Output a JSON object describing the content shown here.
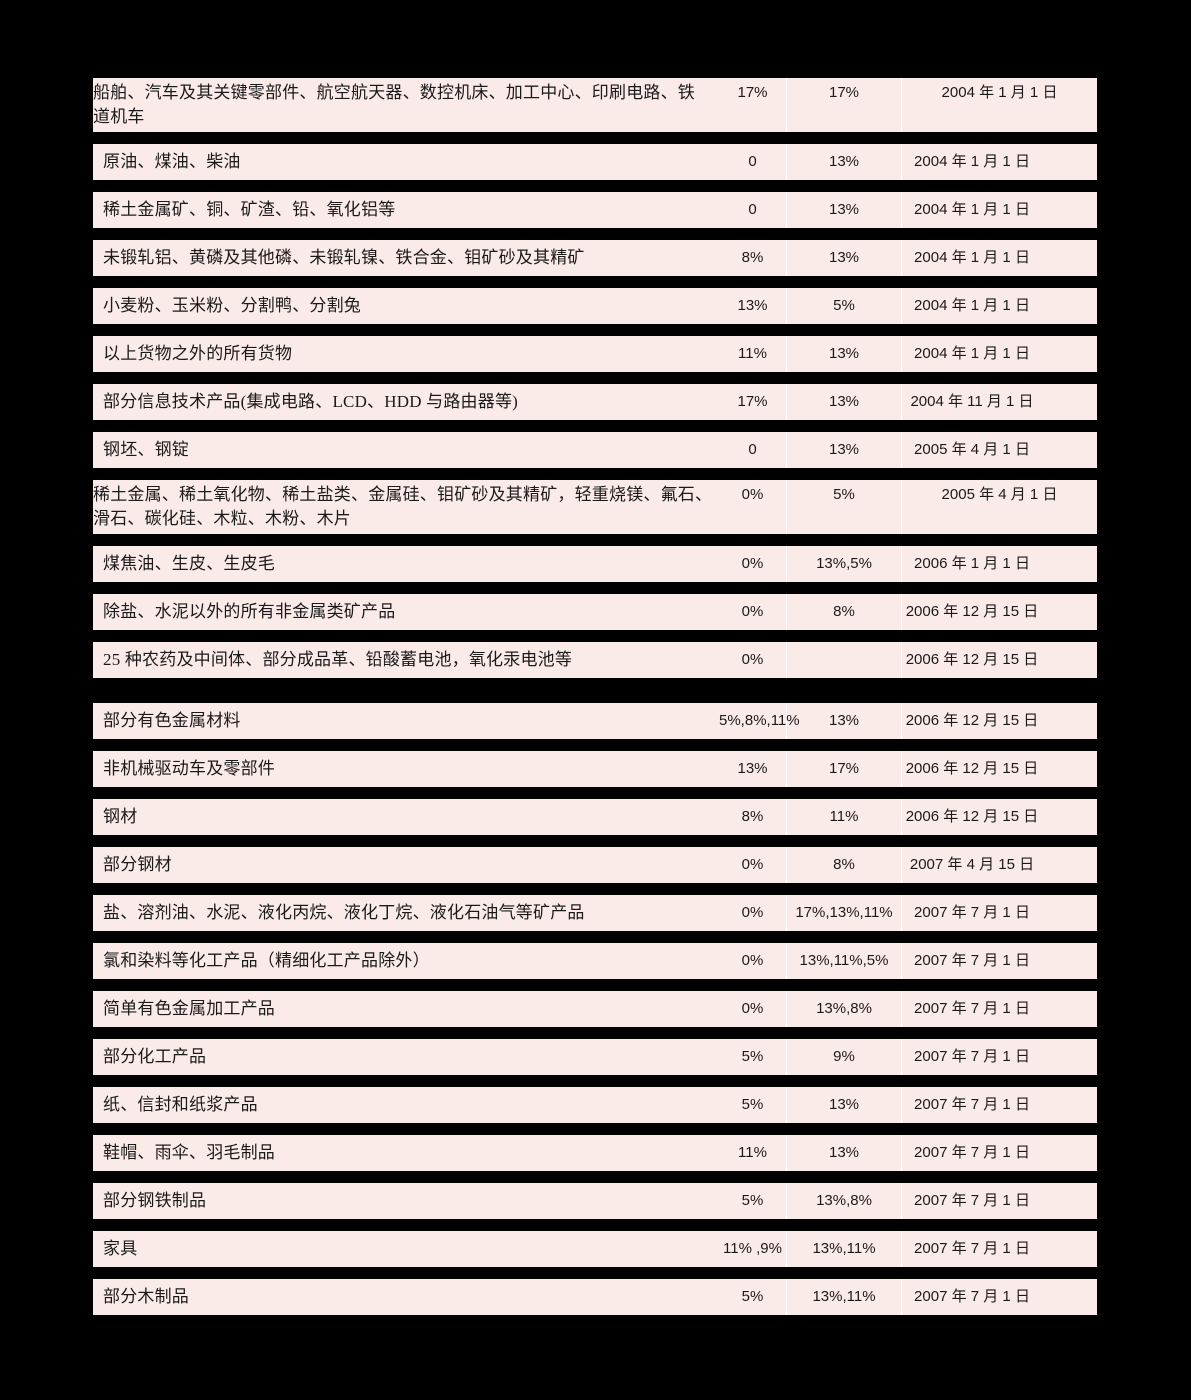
{
  "page": {
    "background_color": "#000000",
    "row_background_color": "#fbebe8",
    "text_color": "#1a1a1a",
    "column_divider_color": "#ffffff"
  },
  "table": {
    "rows": [
      {
        "goods": "船舶、汽车及其关键零部件、航空航天器、数控机床、加工中心、印刷电路、铁\n道机车",
        "rate_before": "17%",
        "rate_after": "17%",
        "effective_date": "2004 年 1 月 1 日"
      },
      {
        "goods": "原油、煤油、柴油",
        "rate_before": "0",
        "rate_after": "13%",
        "effective_date": "2004 年 1 月 1 日"
      },
      {
        "goods": "稀土金属矿、铜、矿渣、铅、氧化铝等",
        "rate_before": "0",
        "rate_after": "13%",
        "effective_date": "2004 年 1 月 1 日"
      },
      {
        "goods": "未锻轧铝、黄磷及其他磷、未锻轧镍、铁合金、钼矿砂及其精矿",
        "rate_before": "8%",
        "rate_after": "13%",
        "effective_date": "2004 年 1 月 1 日"
      },
      {
        "goods": "小麦粉、玉米粉、分割鸭、分割兔",
        "rate_before": "13%",
        "rate_after": "5%",
        "effective_date": "2004 年 1 月 1 日"
      },
      {
        "goods": "以上货物之外的所有货物",
        "rate_before": "11%",
        "rate_after": "13%",
        "effective_date": "2004 年 1 月 1 日"
      },
      {
        "goods": "部分信息技术产品(集成电路、LCD、HDD 与路由器等)",
        "rate_before": "17%",
        "rate_after": "13%",
        "effective_date": "2004 年 11 月 1 日"
      },
      {
        "goods": "钢坯、钢锭",
        "rate_before": "0",
        "rate_after": "13%",
        "effective_date": "2005 年 4 月 1 日"
      },
      {
        "goods": "稀土金属、稀土氧化物、稀土盐类、金属硅、钼矿砂及其精矿，轻重烧镁、氟石、\n滑石、碳化硅、木粒、木粉、木片",
        "rate_before": "0%",
        "rate_after": "5%",
        "effective_date": "2005 年 4 月 1 日"
      },
      {
        "goods": "煤焦油、生皮、生皮毛",
        "rate_before": "0%",
        "rate_after": "13%,5%",
        "effective_date": "2006 年 1 月 1 日"
      },
      {
        "goods": "除盐、水泥以外的所有非金属类矿产品",
        "rate_before": "0%",
        "rate_after": "8%",
        "effective_date": "2006 年 12 月 15 日"
      },
      {
        "goods": "25 种农药及中间体、部分成品革、铅酸蓄电池，氧化汞电池等",
        "rate_before": "0%",
        "rate_after": "",
        "effective_date": "2006 年 12 月 15 日"
      },
      {
        "goods": "部分有色金属材料",
        "rate_before": "5%,8%,11%",
        "rate_after": "13%",
        "effective_date": "2006 年 12 月 15 日"
      },
      {
        "goods": "非机械驱动车及零部件",
        "rate_before": "13%",
        "rate_after": "17%",
        "effective_date": "2006 年 12 月 15 日"
      },
      {
        "goods": "钢材",
        "rate_before": "8%",
        "rate_after": "11%",
        "effective_date": "2006 年 12 月 15 日"
      },
      {
        "goods": "部分钢材",
        "rate_before": "0%",
        "rate_after": "8%",
        "effective_date": "2007 年 4 月 15 日"
      },
      {
        "goods": "盐、溶剂油、水泥、液化丙烷、液化丁烷、液化石油气等矿产品",
        "rate_before": "0%",
        "rate_after": "17%,13%,11%",
        "effective_date": "2007 年 7 月 1 日"
      },
      {
        "goods": "氯和染料等化工产品（精细化工产品除外）",
        "rate_before": "0%",
        "rate_after": "13%,11%,5%",
        "effective_date": "2007 年 7 月 1 日"
      },
      {
        "goods": "简单有色金属加工产品",
        "rate_before": "0%",
        "rate_after": "13%,8%",
        "effective_date": "2007 年 7 月 1 日"
      },
      {
        "goods": "部分化工产品",
        "rate_before": "5%",
        "rate_after": "9%",
        "effective_date": "2007 年 7 月 1 日"
      },
      {
        "goods": "纸、信封和纸浆产品",
        "rate_before": "5%",
        "rate_after": "13%",
        "effective_date": "2007 年 7 月 1 日"
      },
      {
        "goods": "鞋帽、雨伞、羽毛制品",
        "rate_before": "11%",
        "rate_after": "13%",
        "effective_date": "2007 年 7 月 1 日"
      },
      {
        "goods": "部分钢铁制品",
        "rate_before": "5%",
        "rate_after": "13%,8%",
        "effective_date": "2007 年 7 月 1 日"
      },
      {
        "goods": "家具",
        "rate_before": "11% ,9%",
        "rate_after": "13%,11%",
        "effective_date": "2007 年 7 月 1 日"
      },
      {
        "goods": "部分木制品",
        "rate_before": "5%",
        "rate_after": "13%,11%",
        "effective_date": "2007 年 7 月 1 日"
      }
    ]
  }
}
